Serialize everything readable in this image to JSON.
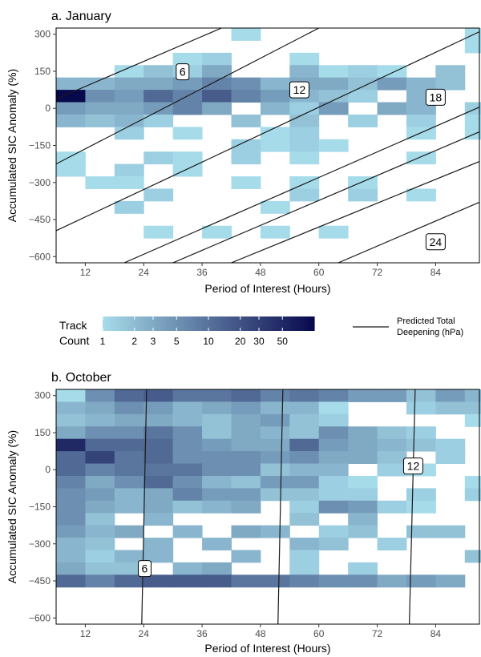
{
  "colors": {
    "low": "#a6dcea",
    "high": "#08084d",
    "contour": "#1a1a1a"
  },
  "legend": {
    "title_line1": "Track",
    "title_line2": "Count",
    "tick_labels": [
      "1",
      "2",
      "3",
      "5",
      "10",
      "20",
      "30",
      "50"
    ],
    "tick_values": [
      1,
      2,
      3,
      5,
      10,
      20,
      30,
      50
    ],
    "max_value": 100,
    "line_label_line1": "Predicted Total",
    "line_label_line2": "Deepening (hPa)"
  },
  "chart_data": [
    {
      "type": "heatmap",
      "title": "a. January",
      "xlabel": "Period of Interest (Hours)",
      "ylabel": "Accumulated SIC Anomaly (%)",
      "x_ticks": [
        12,
        24,
        36,
        48,
        60,
        72,
        84
      ],
      "y_ticks": [
        300,
        150,
        0,
        -150,
        -300,
        -450,
        -600
      ],
      "xlim": [
        6,
        93
      ],
      "ylim": [
        -625,
        325
      ],
      "bin_x_start": 6,
      "bin_width_hours": 6,
      "bin_y_top": 325,
      "bin_height_pct": 50,
      "grid": "none",
      "rows": [
        "......1.......1.....",
        "..............1...3.",
        "....12..1.......1.1.",
        "..1325..4121.3..8411",
        "44556874553643..1113",
        "Z76A8B86432.4..1.1.1",
        "655685.426.54.2411..",
        "4342..3.3.2.2.1121.1",
        "..2.1..12...1.12..11",
        "......2121.........",
        "1..21.2.1...1.......",
        "1.2.1...............",
        ".11...1.1.1.........",
        "...2....2.2.1.......",
        "..2....1............",
        "...............1....",
        "...1.1.1.1.....2...."
      ],
      "contours": [
        {
          "label": "6",
          "segments": [
            [
              6,
              38,
              40,
              325
            ]
          ],
          "label_at": [
            32,
            148
          ]
        },
        {
          "label": "12",
          "segments": [
            [
              6,
              -225,
              60,
              325
            ]
          ],
          "label_at": [
            56,
            75
          ]
        },
        {
          "label": "18",
          "segments": [
            [
              6,
              -495,
              93,
              310
            ]
          ],
          "label_at": [
            84,
            45
          ]
        },
        {
          "label": "24",
          "segments": [
            [
              30,
              -625,
              93,
              -95
            ]
          ],
          "label_at": [
            84,
            -540
          ]
        },
        {
          "label": "",
          "segments": [
            [
              20,
              -625,
              93,
              5
            ]
          ]
        },
        {
          "label": "",
          "segments": [
            [
              42,
              -625,
              93,
              -215
            ]
          ]
        },
        {
          "label": "",
          "segments": [
            [
              64,
              -625,
              93,
              -380
            ]
          ]
        }
      ]
    },
    {
      "type": "heatmap",
      "title": "b. October",
      "xlabel": "Period of Interest (Hours)",
      "ylabel": "Accumulated SIC Anomaly (%)",
      "x_ticks": [
        12,
        24,
        36,
        48,
        60,
        72,
        84
      ],
      "y_ticks": [
        300,
        150,
        0,
        -150,
        -300,
        -450,
        -600
      ],
      "xlim": [
        6,
        93
      ],
      "ylim": [
        -625,
        325
      ],
      "bin_x_start": 6,
      "bin_width_hours": 6,
      "bin_y_top": 325,
      "bin_height_pct": 50,
      "grid": "none",
      "rows": [
        "17AB99A8986636433.15",
        "4576456441..233..5..",
        "3455435632....1..1.3",
        "5779735437532....2..",
        "FAAA7655A65432...1..",
        "AD9A77767553.2.2.2.1",
        "A899977344.21..1.11.",
        "857A7436621...111.11",
        "76458663322.2.2.1..1",
        "7545345.27621......1",
        "73.4....3.4.........",
        "645.4.54.23.33.....3",
        "43.4.4..43.2........",
        "4244..4.2.....3....3",
        "533.45..2.2.........",
        "A8ABBB99877565.....B"
      ],
      "contours": [
        {
          "label": "6",
          "segments": [
            [
              23.6,
              -625,
              24.6,
              325
            ]
          ],
          "label_at": [
            24.2,
            -400
          ]
        },
        {
          "label": "",
          "segments": [
            [
              51.6,
              -625,
              52.6,
              325
            ]
          ]
        },
        {
          "label": "12",
          "segments": [
            [
              78.6,
              -625,
              79.8,
              325
            ]
          ],
          "label_at": [
            79.4,
            15
          ]
        }
      ]
    }
  ]
}
